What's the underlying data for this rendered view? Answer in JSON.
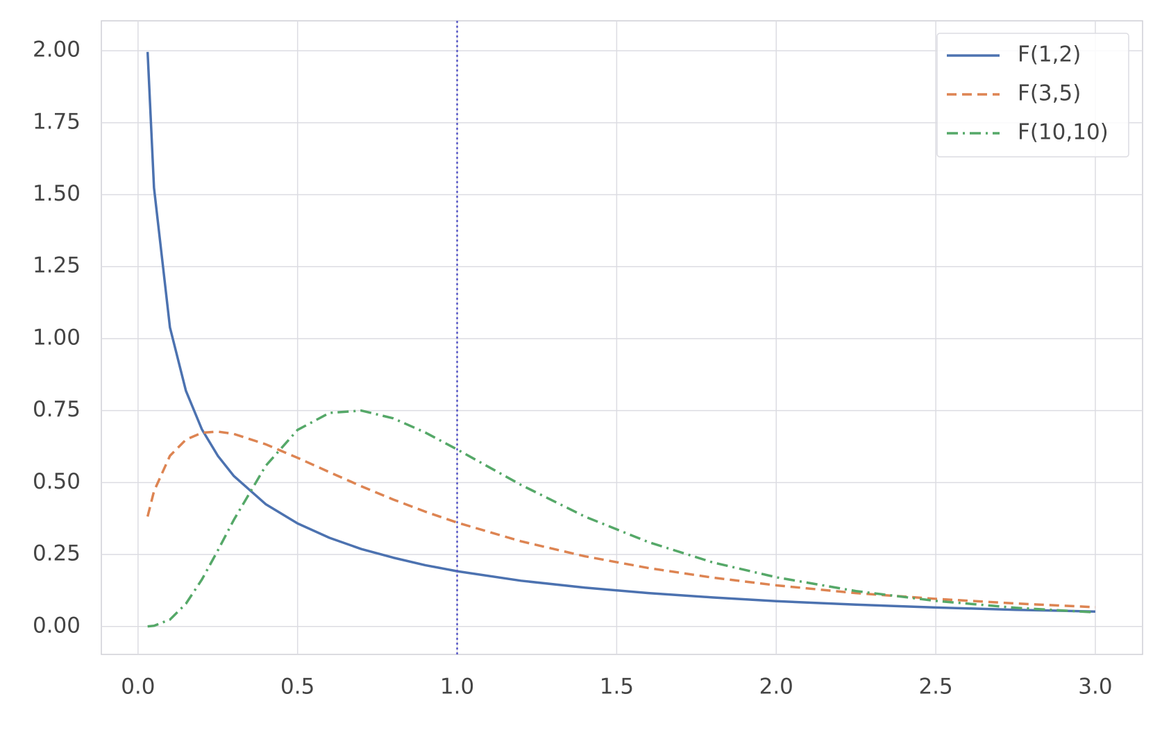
{
  "chart_data": {
    "type": "line",
    "x": [
      0.03,
      0.05,
      0.1,
      0.15,
      0.2,
      0.25,
      0.3,
      0.4,
      0.5,
      0.6,
      0.7,
      0.8,
      0.9,
      1.0,
      1.2,
      1.4,
      1.6,
      1.8,
      2.0,
      2.25,
      2.5,
      2.75,
      3.0
    ],
    "series": [
      {
        "name": "F(1,2)",
        "color": "#4c72b0",
        "linestyle": "solid",
        "values": [
          1.996,
          1.524,
          1.039,
          0.819,
          0.685,
          0.593,
          0.523,
          0.425,
          0.358,
          0.308,
          0.269,
          0.239,
          0.213,
          0.192,
          0.159,
          0.135,
          0.116,
          0.101,
          0.088,
          0.076,
          0.066,
          0.058,
          0.052
        ]
      },
      {
        "name": "F(3,5)",
        "color": "#dd8452",
        "linestyle": "dashed",
        "values": [
          0.382,
          0.47,
          0.593,
          0.649,
          0.673,
          0.677,
          0.669,
          0.633,
          0.586,
          0.536,
          0.487,
          0.441,
          0.399,
          0.361,
          0.296,
          0.244,
          0.203,
          0.17,
          0.143,
          0.116,
          0.096,
          0.08,
          0.067
        ]
      },
      {
        "name": "F(10,10)",
        "color": "#55a868",
        "linestyle": "dashdot",
        "values": [
          0.0004,
          0.0024,
          0.024,
          0.079,
          0.163,
          0.264,
          0.37,
          0.558,
          0.683,
          0.742,
          0.75,
          0.723,
          0.674,
          0.615,
          0.492,
          0.382,
          0.293,
          0.223,
          0.171,
          0.123,
          0.089,
          0.065,
          0.049
        ]
      }
    ],
    "xlim": [
      -0.115,
      3.148
    ],
    "ylim": [
      -0.097,
      2.104
    ],
    "xticks": [
      {
        "value": 0,
        "label": "0.0"
      },
      0.5,
      {
        "value": 1,
        "label": "1.0"
      },
      1.5,
      {
        "value": 2,
        "label": "2.0"
      },
      2.5,
      {
        "value": 3,
        "label": "3.0"
      }
    ],
    "yticks": [
      {
        "value": 0,
        "label": "0.00"
      },
      {
        "value": 0.25,
        "label": "0.25"
      },
      {
        "value": 0.5,
        "label": "0.50"
      },
      {
        "value": 0.75,
        "label": "0.75"
      },
      {
        "value": 1,
        "label": "1.00"
      },
      {
        "value": 1.25,
        "label": "1.25"
      },
      {
        "value": 1.5,
        "label": "1.50"
      },
      {
        "value": 1.75,
        "label": "1.75"
      },
      {
        "value": 2,
        "label": "2.00"
      }
    ],
    "vline": {
      "x": 1.0,
      "color": "#5b5bc8"
    },
    "grid": true,
    "legend": "upper right"
  }
}
